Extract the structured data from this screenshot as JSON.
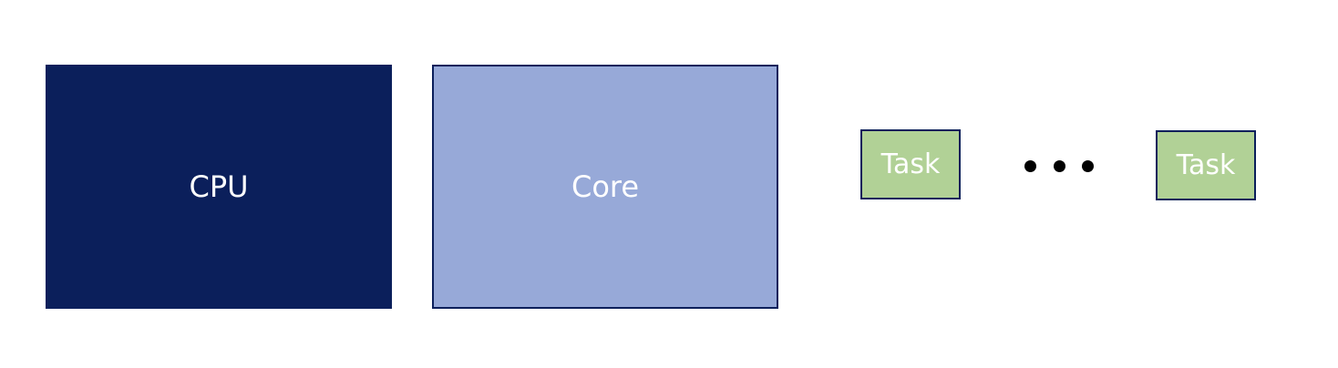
{
  "diagram": {
    "cpu": {
      "label": "CPU",
      "color": "#0b1f5b"
    },
    "core": {
      "label": "Core",
      "color": "#97a9d8"
    },
    "tasks": [
      {
        "label": "Task",
        "color": "#b1d196"
      },
      {
        "label": "Task",
        "color": "#b1d196"
      }
    ],
    "ellipsis_color": "#000000",
    "border_color": "#0b1f5b"
  }
}
